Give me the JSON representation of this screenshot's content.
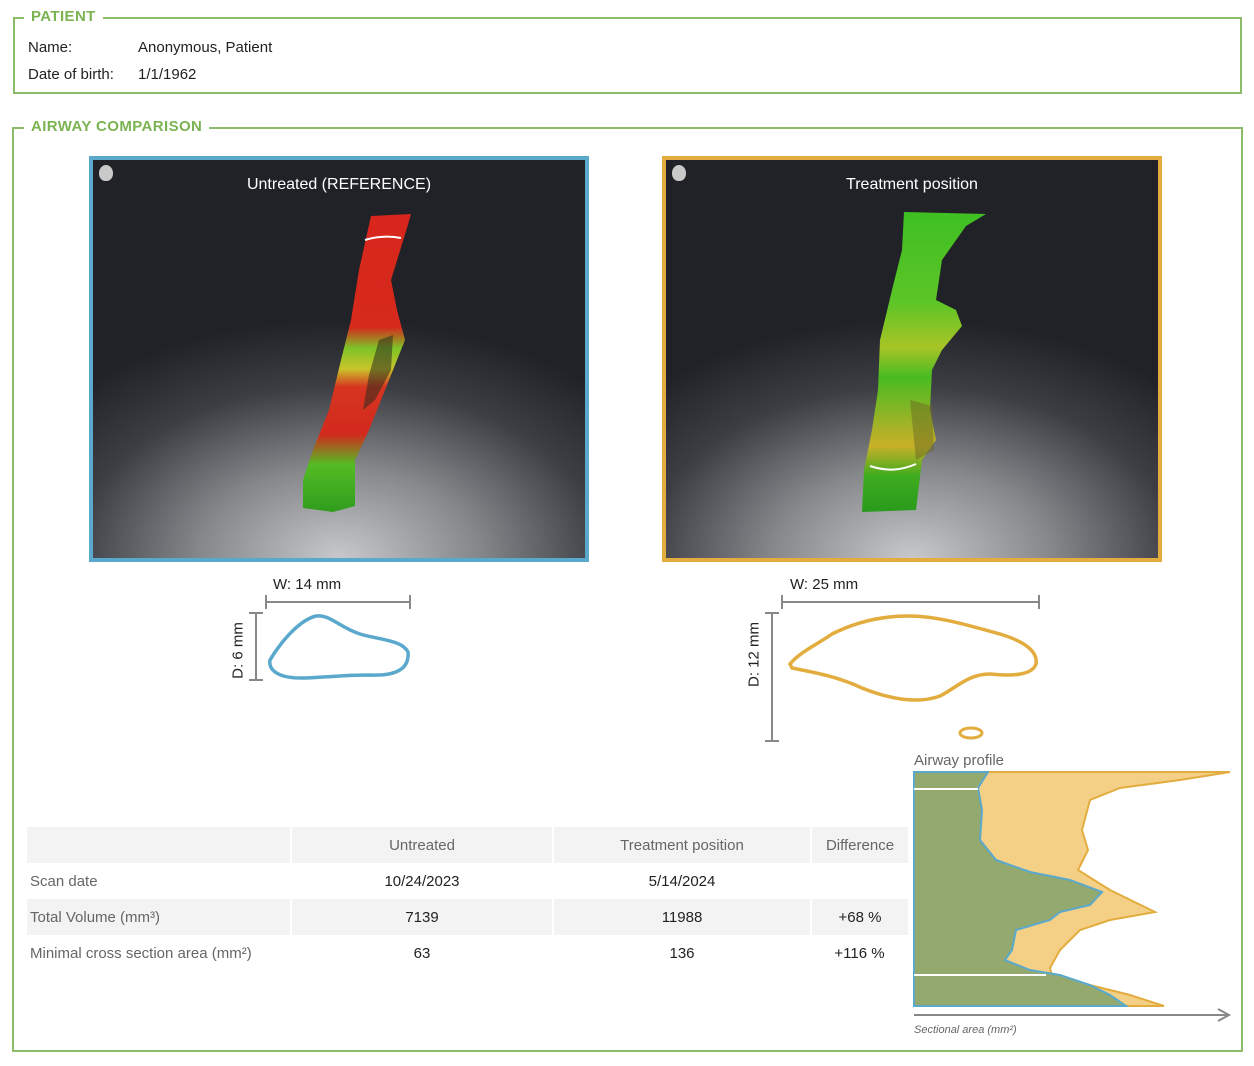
{
  "patient": {
    "legend": "PATIENT",
    "name_label": "Name:",
    "name_value": "Anonymous, Patient",
    "dob_label": "Date of birth:",
    "dob_value": "1/1/1962"
  },
  "airway": {
    "legend": "AIRWAY COMPARISON",
    "panels": {
      "untreated": {
        "title": "Untreated (REFERENCE)",
        "border_color": "#5aa9cd",
        "icon": "head-icon"
      },
      "treatment": {
        "title": "Treatment position",
        "border_color": "#e2ad3e",
        "icon": "head-icon"
      }
    },
    "measurements": {
      "untreated": {
        "width": "W: 14 mm",
        "depth": "D: 6 mm"
      },
      "treatment": {
        "width": "W: 25 mm",
        "depth": "D: 12 mm"
      }
    },
    "table": {
      "headers": [
        "",
        "Untreated",
        "Treatment position",
        "Difference"
      ],
      "rows": [
        {
          "label": "Scan date",
          "untreated": "10/24/2023",
          "treatment": "5/14/2024",
          "difference": ""
        },
        {
          "label": "Total Volume (mm³)",
          "untreated": "7139",
          "treatment": "11988",
          "difference": "+68 %"
        },
        {
          "label": "Minimal cross section area (mm²)",
          "untreated": "63",
          "treatment": "136",
          "difference": "+116 %"
        }
      ]
    },
    "chart": {
      "title": "Airway profile",
      "xlabel": "Sectional area (mm²)"
    }
  },
  "colors": {
    "section_border": "#8cbc6a",
    "legend_text": "#7cb352",
    "untreated": "#5aa9cd",
    "treatment": "#e2ad3e",
    "chart_untreated_fill": "#93a96e",
    "chart_treatment_fill": "#f4cf86"
  }
}
